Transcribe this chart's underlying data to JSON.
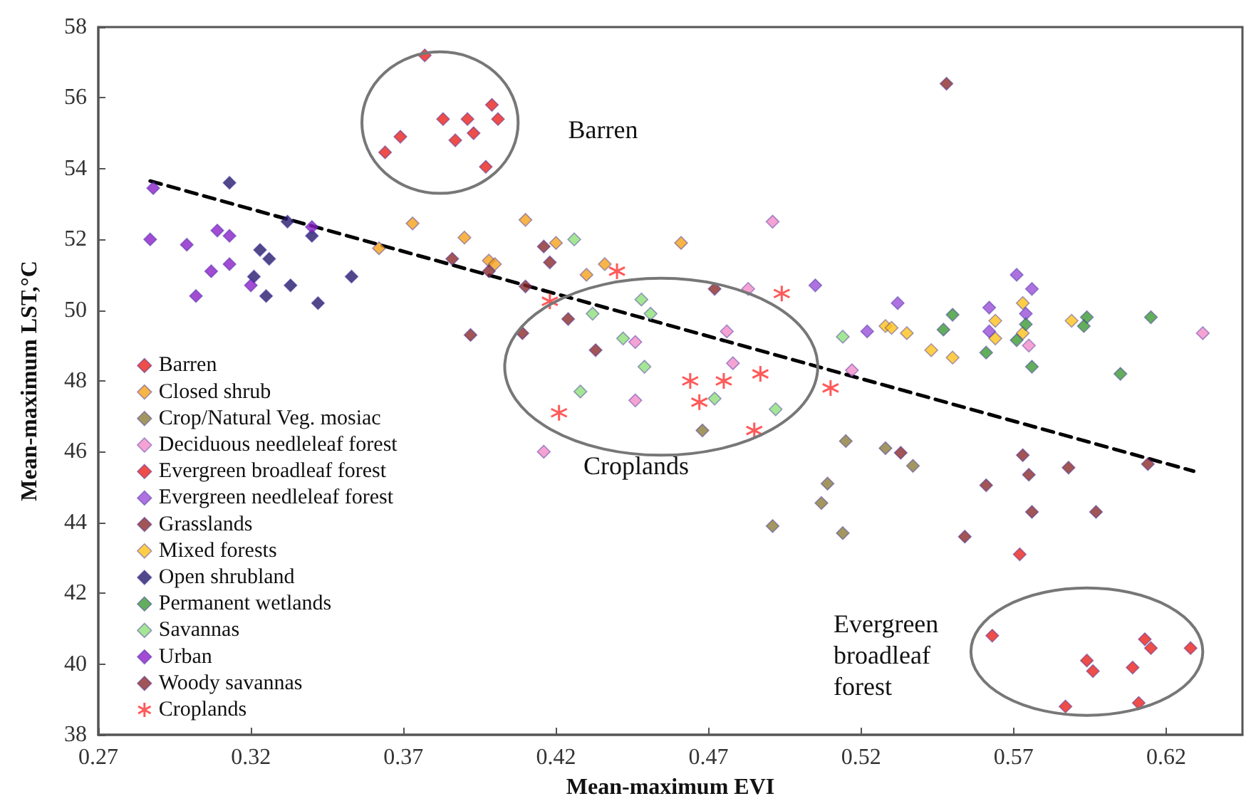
{
  "chart_data": {
    "type": "scatter",
    "xlabel": "Mean-maximum EVI",
    "ylabel": "Mean-maximum LST,°C",
    "xlim": [
      0.27,
      0.645
    ],
    "xticks": [
      0.27,
      0.32,
      0.37,
      0.42,
      0.47,
      0.52,
      0.57,
      0.62
    ],
    "ylim": [
      38,
      58
    ],
    "yticks": [
      38,
      40,
      42,
      44,
      46,
      48,
      50,
      52,
      54,
      56,
      58
    ],
    "grid": false,
    "legend": "bottom left",
    "marker": "diamond",
    "annotations": [
      "Barren",
      "Croplands",
      "Evergreen\nbroadleaf\nforest"
    ],
    "series": [
      {
        "name": "Barren",
        "color": "#e8221c",
        "x": [
          0.377,
          0.364,
          0.369,
          0.383,
          0.391,
          0.387,
          0.393,
          0.399,
          0.401,
          0.397
        ],
        "values": [
          57.2,
          54.46,
          54.9,
          55.4,
          55.4,
          54.8,
          55.0,
          55.8,
          55.4,
          54.05
        ]
      },
      {
        "name": "Closed shrub",
        "color": "#f5a31a",
        "x": [
          0.373,
          0.362,
          0.39,
          0.41,
          0.42,
          0.398,
          0.4,
          0.43,
          0.436,
          0.461
        ],
        "values": [
          52.45,
          51.75,
          52.05,
          52.55,
          51.9,
          51.4,
          51.3,
          51.0,
          51.3,
          51.9
        ]
      },
      {
        "name": "Crop/Natural Veg. mosiac",
        "color": "#8b7d3a",
        "x": [
          0.468,
          0.491,
          0.507,
          0.509,
          0.514,
          0.515,
          0.528,
          0.537
        ],
        "values": [
          46.6,
          43.9,
          44.55,
          45.1,
          43.7,
          46.3,
          46.1,
          45.6
        ]
      },
      {
        "name": "Deciduous needleleaf forest",
        "color": "#f28cc8",
        "x": [
          0.491,
          0.483,
          0.476,
          0.478,
          0.446,
          0.446,
          0.416,
          0.575,
          0.632,
          0.517
        ],
        "values": [
          52.5,
          50.6,
          49.4,
          48.5,
          49.1,
          47.45,
          46.0,
          49.0,
          49.35,
          48.3
        ]
      },
      {
        "name": "Evergreen broadleaf forest",
        "color": "#e8221c",
        "x": [
          0.563,
          0.572,
          0.594,
          0.596,
          0.587,
          0.609,
          0.613,
          0.615,
          0.611,
          0.628
        ],
        "values": [
          40.8,
          43.1,
          40.1,
          39.8,
          38.8,
          39.9,
          40.7,
          40.45,
          38.9,
          40.45
        ]
      },
      {
        "name": "Evergreen needleleaf forest",
        "color": "#9a4fd8",
        "x": [
          0.522,
          0.532,
          0.571,
          0.576,
          0.562,
          0.562,
          0.574,
          0.505
        ],
        "values": [
          49.4,
          50.2,
          51.0,
          50.6,
          50.07,
          49.4,
          49.9,
          50.7
        ]
      },
      {
        "name": "Grasslands",
        "color": "#8b2a2a",
        "x": [
          0.386,
          0.398,
          0.41,
          0.418,
          0.416,
          0.392,
          0.409,
          0.424,
          0.433,
          0.472
        ],
        "values": [
          51.45,
          51.1,
          50.67,
          51.35,
          51.8,
          49.3,
          49.35,
          49.75,
          48.87,
          50.6
        ]
      },
      {
        "name": "Mixed forests",
        "color": "#ffc21a",
        "x": [
          0.528,
          0.53,
          0.535,
          0.543,
          0.55,
          0.564,
          0.564,
          0.573,
          0.573,
          0.589
        ],
        "values": [
          49.55,
          49.5,
          49.35,
          48.87,
          48.66,
          49.7,
          49.2,
          50.2,
          49.35,
          49.7
        ]
      },
      {
        "name": "Open shrubland",
        "color": "#241a6b",
        "x": [
          0.313,
          0.323,
          0.326,
          0.321,
          0.325,
          0.332,
          0.333,
          0.34,
          0.342,
          0.353
        ],
        "values": [
          53.6,
          51.7,
          51.45,
          50.95,
          50.4,
          52.5,
          50.7,
          52.1,
          50.2,
          50.95
        ]
      },
      {
        "name": "Permanent wetlands",
        "color": "#3c9a34",
        "x": [
          0.55,
          0.547,
          0.561,
          0.574,
          0.571,
          0.576,
          0.594,
          0.593,
          0.615,
          0.605
        ],
        "values": [
          49.87,
          49.45,
          48.8,
          49.6,
          49.15,
          48.4,
          49.8,
          49.55,
          49.8,
          48.2
        ]
      },
      {
        "name": "Savannas",
        "color": "#8fe07a",
        "x": [
          0.426,
          0.448,
          0.451,
          0.432,
          0.442,
          0.449,
          0.428,
          0.514,
          0.472,
          0.492
        ],
        "values": [
          52.0,
          50.3,
          49.9,
          49.9,
          49.2,
          48.4,
          47.7,
          49.25,
          47.5,
          47.2
        ]
      },
      {
        "name": "Urban",
        "color": "#8a1fc8",
        "x": [
          0.288,
          0.287,
          0.299,
          0.302,
          0.307,
          0.309,
          0.313,
          0.313,
          0.32,
          0.34
        ],
        "values": [
          53.45,
          52.0,
          51.85,
          50.4,
          51.1,
          52.25,
          52.1,
          51.3,
          50.7,
          52.35
        ]
      },
      {
        "name": "Woody savannas",
        "color": "#8b2a2a",
        "x": [
          0.548,
          0.533,
          0.561,
          0.554,
          0.573,
          0.575,
          0.576,
          0.588,
          0.597,
          0.614
        ],
        "values": [
          56.4,
          45.97,
          45.05,
          43.6,
          45.9,
          45.35,
          44.3,
          45.55,
          44.3,
          45.65
        ]
      },
      {
        "name": "Croplands",
        "color": "#ff3030",
        "marker": "cross",
        "x": [
          0.44,
          0.418,
          0.494,
          0.464,
          0.475,
          0.487,
          0.51,
          0.421,
          0.467,
          0.485
        ],
        "values": [
          51.1,
          50.25,
          50.47,
          48.0,
          48.0,
          48.2,
          47.8,
          47.1,
          47.4,
          46.6
        ]
      },
      {
        "type": "line",
        "color": "#000000",
        "marker": "none",
        "line_style": "dashed",
        "x": [
          0.287,
          0.629
        ],
        "values": [
          53.65,
          45.45
        ]
      }
    ]
  }
}
